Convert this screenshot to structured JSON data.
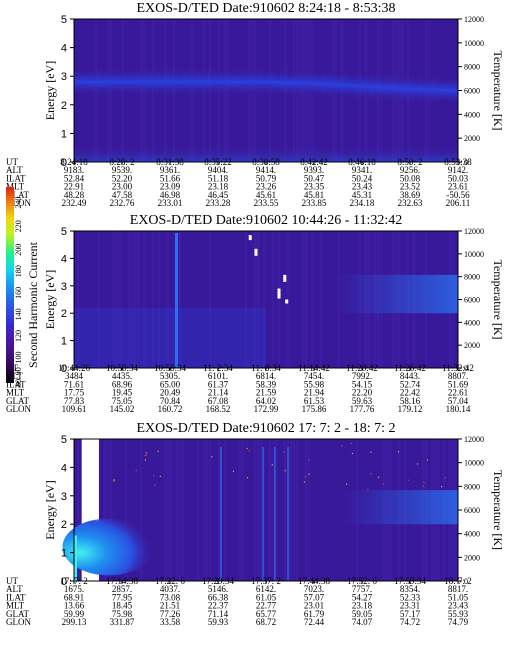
{
  "chart_data": {
    "type": "heatmap",
    "panels": [
      {
        "instrument": "EXOS-D/TED",
        "date_label": "Date:910602",
        "time_range": "8:24:18 - 8:53:38",
        "ylabel": "Energy [eV]",
        "y2label": "Temperature [K]",
        "ylim": [
          0,
          5
        ],
        "y2lim": [
          0,
          12000
        ],
        "yticks": [
          "0",
          "1",
          "2",
          "3",
          "4",
          "5"
        ],
        "y2ticks": [
          "0",
          "2000",
          "4000",
          "6000",
          "8000",
          "10000",
          "12000"
        ],
        "row_labels": [
          "UT",
          "ALT",
          "ILAT",
          "MLT",
          "GLAT",
          "GLON"
        ],
        "columns": [
          [
            "8:24:18",
            "9183.",
            "52.84",
            "22.91",
            "48.28",
            "232.49"
          ],
          [
            "8:28: 2",
            "9539.",
            "52.20",
            "23.00",
            "47.58",
            "232.76"
          ],
          [
            "8:31:38",
            "9361.",
            "51.66",
            "23.09",
            "46.98",
            "233.01"
          ],
          [
            "8:35:22",
            "9404.",
            "51.18",
            "23.18",
            "46.45",
            "233.28"
          ],
          [
            "8:38:58",
            "9414.",
            "50.79",
            "23.26",
            "45.61",
            "233.55"
          ],
          [
            "8:42:42",
            "9393.",
            "50.47",
            "23.35",
            "45.81",
            "233.85"
          ],
          [
            "8:46:18",
            "9341.",
            "50.24",
            "23.43",
            "45.31",
            "234.18"
          ],
          [
            "8:50: 2",
            "9256.",
            "50.08",
            "23.52",
            "38.69",
            "232.63"
          ],
          [
            "8:53:38",
            "9142.",
            "50.03",
            "23.61",
            "-50.56",
            "206.11"
          ]
        ],
        "band_center_ev": [
          2.8,
          2.8,
          2.8,
          2.8,
          2.8,
          2.75,
          2.65,
          2.55,
          2.5
        ]
      },
      {
        "instrument": "EXOS-D/TED",
        "date_label": "Date:910602",
        "time_range": "10:44:26 - 11:32:42",
        "ylabel": "Energy [eV]",
        "y2label": "Temperature [K]",
        "ylim": [
          0,
          5
        ],
        "y2lim": [
          0,
          12000
        ],
        "yticks": [
          "0",
          "1",
          "2",
          "3",
          "4",
          "5"
        ],
        "y2ticks": [
          "0",
          "2000",
          "4000",
          "6000",
          "8000",
          "10000",
          "12000"
        ],
        "row_labels": [
          "UT",
          "ALT",
          "ILAT",
          "MLT",
          "GLAT",
          "GLON"
        ],
        "columns": [
          [
            "10:44:26",
            "3484",
            "71.61",
            "17.75",
            "77.83",
            "109.61"
          ],
          [
            "10:50:34",
            "4435.",
            "68.96",
            "19.45",
            "75.05",
            "145.02"
          ],
          [
            "10:56:34",
            "5305.",
            "65.00",
            "20.49",
            "70.84",
            "160.72"
          ],
          [
            "11: 2:34",
            "6101.",
            "61.37",
            "21.14",
            "67.08",
            "168.52"
          ],
          [
            "11: 8:34",
            "6814.",
            "58.39",
            "21.59",
            "64.02",
            "172.99"
          ],
          [
            "11:14:42",
            "7454.",
            "55.98",
            "21.94",
            "61.53",
            "175.86"
          ],
          [
            "11:20:42",
            "7992.",
            "54.15",
            "22.20",
            "59.63",
            "177.76"
          ],
          [
            "11:26:42",
            "8443.",
            "52.74",
            "22.42",
            "58.16",
            "179.12"
          ],
          [
            "11:32:42",
            "8807.",
            "51.69",
            "22.61",
            "57.04",
            "180.14"
          ]
        ]
      },
      {
        "instrument": "EXOS-D/TED",
        "date_label": "Date:910602",
        "time_range": "17: 7: 2 - 18: 7: 2",
        "ylabel": "Energy [eV]",
        "y2label": "Temperature [K]",
        "ylim": [
          0,
          5
        ],
        "y2lim": [
          0,
          12000
        ],
        "yticks": [
          "0",
          "1",
          "2",
          "3",
          "4",
          "5"
        ],
        "y2ticks": [
          "0",
          "2000",
          "4000",
          "6000",
          "8000",
          "10000",
          "12000"
        ],
        "row_labels": [
          "UT",
          "ALT",
          "ILAT",
          "MLT",
          "GLAT",
          "GLON"
        ],
        "columns": [
          [
            "17: 7: 2",
            "1675.",
            "68.91",
            "13.66",
            "59.99",
            "299.13"
          ],
          [
            "17:14:38",
            "2857.",
            "77.95",
            "18.45",
            "75.98",
            "331.87"
          ],
          [
            "17:22: 6",
            "4037.",
            "73.08",
            "21.51",
            "77.26",
            "33.58"
          ],
          [
            "17:29:34",
            "5146.",
            "66.38",
            "22.37",
            "71.14",
            "59.93"
          ],
          [
            "17:37: 2",
            "6142.",
            "61.05",
            "22.77",
            "65.77",
            "68.72"
          ],
          [
            "17:44:38",
            "7023.",
            "57.07",
            "23.01",
            "61.79",
            "72.44"
          ],
          [
            "17:52: 6",
            "7757.",
            "54.27",
            "23.18",
            "59.05",
            "74.07"
          ],
          [
            "17:59:34",
            "8354.",
            "52.33",
            "23.31",
            "57.17",
            "74.72"
          ],
          [
            "18: 7: 2",
            "8817.",
            "51.05",
            "23.43",
            "55.93",
            "74.79"
          ]
        ]
      }
    ],
    "colorbar": {
      "label": "Second Harmonic Current",
      "ticks": [
        "80",
        "90",
        "100",
        "120",
        "140",
        "160",
        "180",
        "200",
        "220",
        "240"
      ],
      "colors": [
        "#000000",
        "#3a0a5e",
        "#4a14a0",
        "#3a2ad0",
        "#2a5ae8",
        "#1a9af0",
        "#10d8e8",
        "#20f090",
        "#c0f020",
        "#f0d810",
        "#f08010",
        "#e02010"
      ]
    }
  }
}
